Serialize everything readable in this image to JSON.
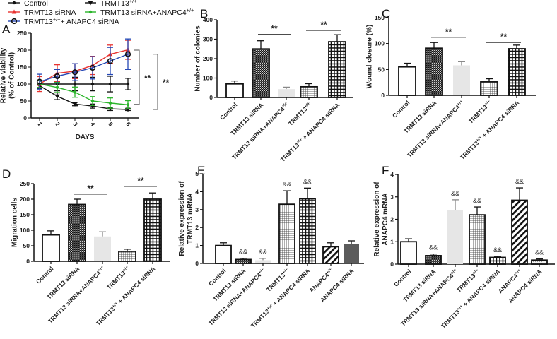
{
  "panel_labels": [
    "A",
    "B",
    "C",
    "D",
    "E",
    "F"
  ],
  "chart_data": [
    {
      "panel": "A",
      "type": "line",
      "xlabel": "DAYS",
      "ylabel": [
        "Relative viability",
        "(% of Control)"
      ],
      "x": [
        1,
        2,
        3,
        4,
        5,
        6
      ],
      "ylim": [
        0,
        250
      ],
      "yticks": [
        0,
        50,
        100,
        150,
        200,
        250
      ],
      "legend_placement": "top",
      "series": [
        {
          "name": "Control",
          "color": "#111111",
          "marker": "dot",
          "values": [
            100,
            100,
            100,
            100,
            100,
            100
          ],
          "err": [
            10,
            20,
            20,
            20,
            23,
            17
          ]
        },
        {
          "name": "TRMT13+/+",
          "color": "#111111",
          "marker": "triangle-down",
          "values": [
            95,
            64,
            41,
            35,
            27,
            25
          ],
          "err": [
            8,
            10,
            5,
            6,
            5,
            3
          ]
        },
        {
          "name": "TRMT13 siRNA",
          "color": "#e8322f",
          "marker": "triangle-up",
          "values": [
            100,
            132,
            138,
            155,
            188,
            201
          ],
          "err": [
            22,
            25,
            22,
            27,
            27,
            28
          ]
        },
        {
          "name": "TRMT13 siRNA+ANAPC4+/+",
          "color": "#2bb52b",
          "marker": "dot",
          "values": [
            100,
            90,
            76,
            50,
            44,
            39
          ],
          "err": [
            10,
            15,
            15,
            13,
            15,
            12
          ]
        },
        {
          "name": "TRMT13+/++ ANAPC4 siRNA",
          "color": "#2548b5",
          "marker": "open-circle",
          "values": [
            107,
            123,
            135,
            148,
            168,
            188
          ],
          "err": [
            22,
            20,
            25,
            33,
            40,
            45
          ]
        }
      ],
      "annotations": [
        {
          "text": "**",
          "from": 200,
          "to": 40
        },
        {
          "text": "**",
          "from": 188,
          "to": 25
        }
      ]
    },
    {
      "panel": "B",
      "type": "bar",
      "ylabel": [
        "Number of colonies"
      ],
      "ylim": [
        0,
        400
      ],
      "yticks": [
        0,
        100,
        200,
        300,
        400
      ],
      "categories": [
        "Control",
        "TRMT13 siRNA",
        "TRMT13 siRNA+ANAPC4+/+",
        "TRMT13+/+",
        "TRMT13+/+ + ANAPC4 siRNA"
      ],
      "values": [
        70,
        250,
        43,
        55,
        287
      ],
      "err": [
        15,
        42,
        10,
        16,
        36
      ],
      "fills": [
        "white",
        "checker",
        "lightgray",
        "finegrid",
        "biggrid"
      ],
      "significance": [
        {
          "text": "**",
          "bars": [
            1,
            2
          ],
          "level": 325
        },
        {
          "text": "**",
          "bars": [
            3,
            4
          ],
          "level": 345
        }
      ]
    },
    {
      "panel": "C",
      "type": "bar",
      "ylabel": [
        "Wound closure (%)"
      ],
      "ylim": [
        0,
        150
      ],
      "yticks": [
        0,
        50,
        100,
        150
      ],
      "categories": [
        "Control",
        "TRMT13 siRNA",
        "TRMT13 siRNA+ANAPC4+/+",
        "TRMT13+/+",
        "TRMT13+/+ + ANAPC4 siRNA"
      ],
      "values": [
        55,
        91,
        58,
        26,
        90
      ],
      "err": [
        7,
        11,
        7,
        6,
        7
      ],
      "fills": [
        "white",
        "checker",
        "lightgray",
        "finegrid",
        "biggrid"
      ],
      "significance": [
        {
          "text": "**",
          "bars": [
            1,
            2
          ],
          "level": 112
        },
        {
          "text": "**",
          "bars": [
            3,
            4
          ],
          "level": 102
        }
      ]
    },
    {
      "panel": "D",
      "type": "bar",
      "ylabel": [
        "Migration cells"
      ],
      "ylim": [
        0,
        250
      ],
      "yticks": [
        0,
        50,
        100,
        150,
        200,
        250
      ],
      "categories": [
        "Control",
        "TRMT13 siRNA",
        "TRMT13 siRNA+ANAPC4+/+",
        "TRMT13+/+",
        "TRMT13+/+ + ANAPC4 siRNA"
      ],
      "values": [
        85,
        183,
        80,
        32,
        200
      ],
      "err": [
        13,
        17,
        15,
        7,
        20
      ],
      "fills": [
        "white",
        "checker",
        "lightgray",
        "finegrid",
        "biggrid"
      ],
      "significance": [
        {
          "text": "**",
          "bars": [
            1,
            2
          ],
          "level": 216
        },
        {
          "text": "**",
          "bars": [
            3,
            4
          ],
          "level": 241
        }
      ]
    },
    {
      "panel": "E",
      "type": "bar",
      "ylabel": [
        "Relative expression of",
        "TRMT13 mRNA"
      ],
      "ylim": [
        0,
        5
      ],
      "yticks": [
        0,
        1,
        2,
        3,
        4,
        5
      ],
      "categories": [
        "Control",
        "TRMT13 siRNA",
        "TRMT13 siRNA+ANAPC4+/+",
        "TRMT13+/+",
        "TRMT13+/+ + ANAPC4 siRNA",
        "ANAPC4+/+",
        "ANAPC4 siRNA"
      ],
      "values": [
        1.0,
        0.22,
        0.18,
        3.3,
        3.6,
        0.93,
        1.1
      ],
      "err": [
        0.15,
        0.07,
        0.1,
        0.75,
        0.6,
        0.22,
        0.16
      ],
      "fills": [
        "white",
        "checker",
        "lightgray",
        "finegrid",
        "biggrid",
        "diagonal",
        "darkgray"
      ],
      "marks": [
        "",
        "&&",
        "&&",
        "&&",
        "&&",
        "",
        ""
      ]
    },
    {
      "panel": "F",
      "type": "bar",
      "ylabel": [
        "Relative expression of",
        "ANAPC4 mRNA"
      ],
      "ylim": [
        0,
        4
      ],
      "yticks": [
        0,
        1,
        2,
        3,
        4
      ],
      "categories": [
        "Control",
        "TRMT13 siRNA",
        "TRMT13 siRNA+ANAPC4+/+",
        "TRMT13+/+",
        "TRMT13+/+ + ANAPC4 siRNA",
        "ANAPC4+/+",
        "ANAPC4 siRNA"
      ],
      "values": [
        1.0,
        0.38,
        2.42,
        2.2,
        0.3,
        2.85,
        0.18
      ],
      "err": [
        0.13,
        0.07,
        0.45,
        0.35,
        0.05,
        0.55,
        0.05
      ],
      "fills": [
        "white",
        "checker",
        "lightgray",
        "finegrid",
        "biggrid",
        "diagonal",
        "dots"
      ],
      "marks": [
        "",
        "&&",
        "&&",
        "&&",
        "&&",
        "&&",
        "&&"
      ]
    }
  ]
}
